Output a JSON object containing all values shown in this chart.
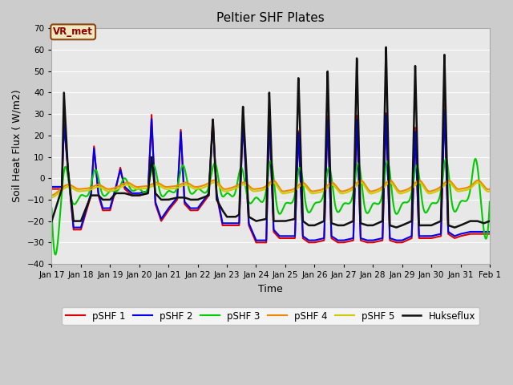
{
  "title": "Peltier SHF Plates",
  "xlabel": "Time",
  "ylabel": "Soil Heat Flux ( W/m2)",
  "ylim": [
    -40,
    70
  ],
  "yticks": [
    -40,
    -30,
    -20,
    -10,
    0,
    10,
    20,
    30,
    40,
    50,
    60,
    70
  ],
  "xlim": [
    0,
    15
  ],
  "xtick_labels": [
    "Jan 17",
    "Jan 18",
    "Jan 19",
    "Jan 20",
    "Jan 21",
    "Jan 22",
    "Jan 23",
    "Jan 24",
    "Jan 25",
    "Jan 26",
    "Jan 27",
    "Jan 28",
    "Jan 29",
    "Jan 30",
    "Jan 31",
    "Feb 1"
  ],
  "annotation_text": "VR_met",
  "series_colors": [
    "#dd0000",
    "#0000ee",
    "#00cc00",
    "#ee8800",
    "#cccc00",
    "#111111"
  ],
  "series_labels": [
    "pSHF 1",
    "pSHF 2",
    "pSHF 3",
    "pSHF 4",
    "pSHF 5",
    "Hukseflux"
  ],
  "series_linewidths": [
    1.5,
    1.5,
    1.5,
    1.5,
    1.5,
    1.8
  ],
  "huk_t": [
    0.0,
    0.35,
    0.42,
    0.55,
    0.75,
    1.0,
    1.35,
    1.45,
    1.6,
    1.75,
    2.0,
    2.2,
    2.35,
    2.5,
    2.75,
    3.0,
    3.3,
    3.42,
    3.55,
    3.75,
    4.0,
    4.3,
    4.42,
    4.55,
    4.75,
    5.0,
    5.38,
    5.52,
    5.65,
    5.85,
    6.0,
    6.3,
    6.42,
    6.55,
    6.75,
    7.0,
    7.35,
    7.45,
    7.6,
    7.8,
    8.0,
    8.33,
    8.45,
    8.6,
    8.8,
    9.0,
    9.33,
    9.45,
    9.58,
    9.8,
    10.0,
    10.33,
    10.45,
    10.58,
    10.8,
    11.0,
    11.33,
    11.45,
    11.58,
    11.8,
    12.0,
    12.33,
    12.45,
    12.58,
    12.8,
    13.0,
    13.33,
    13.45,
    13.58,
    13.8,
    14.0,
    14.33,
    14.45,
    14.58,
    14.8,
    15.0
  ],
  "huk_v": [
    -20,
    -5,
    40,
    5,
    -20,
    -20,
    -8,
    -8,
    -8,
    -10,
    -10,
    -7,
    -7,
    -7,
    -8,
    -8,
    -7,
    10,
    -7,
    -10,
    -10,
    -9,
    -9,
    -9,
    -10,
    -10,
    -8,
    28,
    -10,
    -15,
    -18,
    -18,
    -17,
    34,
    -18,
    -20,
    -19,
    41,
    -20,
    -20,
    -20,
    -19,
    48,
    -20,
    -22,
    -22,
    -20,
    51,
    -21,
    -22,
    -22,
    -20,
    57,
    -21,
    -22,
    -22,
    -20,
    62,
    -22,
    -23,
    -22,
    -20,
    53,
    -22,
    -22,
    -22,
    -20,
    58,
    -22,
    -23,
    -22,
    -20,
    -20,
    -20,
    -21,
    -20
  ],
  "shf1_t": [
    0.0,
    0.35,
    0.42,
    0.55,
    0.75,
    1.0,
    1.35,
    1.45,
    1.6,
    1.75,
    2.0,
    2.2,
    2.35,
    2.5,
    2.75,
    3.0,
    3.3,
    3.42,
    3.55,
    3.75,
    4.0,
    4.3,
    4.42,
    4.55,
    4.75,
    5.0,
    5.38,
    5.52,
    5.65,
    5.85,
    6.0,
    6.3,
    6.42,
    6.55,
    6.75,
    7.0,
    7.35,
    7.45,
    7.6,
    7.8,
    8.0,
    8.33,
    8.45,
    8.6,
    8.8,
    9.0,
    9.33,
    9.45,
    9.58,
    9.8,
    10.0,
    10.33,
    10.45,
    10.58,
    10.8,
    11.0,
    11.33,
    11.45,
    11.58,
    11.8,
    12.0,
    12.33,
    12.45,
    12.58,
    12.8,
    13.0,
    13.33,
    13.45,
    13.58,
    13.8,
    14.0,
    14.33,
    14.45,
    14.58,
    14.8,
    15.0
  ],
  "shf1_v": [
    -5,
    -5,
    27,
    5,
    -24,
    -24,
    -8,
    15,
    -8,
    -15,
    -15,
    -5,
    5,
    -5,
    -8,
    -8,
    -7,
    30,
    -12,
    -20,
    -15,
    -10,
    23,
    -12,
    -15,
    -15,
    -8,
    28,
    -8,
    -22,
    -22,
    -22,
    -22,
    28,
    -22,
    -30,
    -30,
    30,
    -25,
    -28,
    -28,
    -28,
    23,
    -28,
    -30,
    -30,
    -29,
    30,
    -28,
    -30,
    -30,
    -29,
    30,
    -29,
    -30,
    -30,
    -29,
    31,
    -29,
    -30,
    -30,
    -28,
    24,
    -28,
    -28,
    -28,
    -27,
    35,
    -26,
    -28,
    -27,
    -26,
    -26,
    -26,
    -26,
    -26
  ],
  "shf2_t": [
    0.0,
    0.35,
    0.42,
    0.55,
    0.75,
    1.0,
    1.35,
    1.45,
    1.6,
    1.75,
    2.0,
    2.2,
    2.35,
    2.5,
    2.75,
    3.0,
    3.3,
    3.42,
    3.55,
    3.75,
    4.0,
    4.3,
    4.42,
    4.55,
    4.75,
    5.0,
    5.38,
    5.52,
    5.65,
    5.85,
    6.0,
    6.3,
    6.42,
    6.55,
    6.75,
    7.0,
    7.35,
    7.45,
    7.6,
    7.8,
    8.0,
    8.33,
    8.45,
    8.6,
    8.8,
    9.0,
    9.33,
    9.45,
    9.58,
    9.8,
    10.0,
    10.33,
    10.45,
    10.58,
    10.8,
    11.0,
    11.33,
    11.45,
    11.58,
    11.8,
    12.0,
    12.33,
    12.45,
    12.58,
    12.8,
    13.0,
    13.33,
    13.45,
    13.58,
    13.8,
    14.0,
    14.33,
    14.45,
    14.58,
    14.8,
    15.0
  ],
  "shf2_v": [
    -4,
    -4,
    25,
    5,
    -23,
    -23,
    -7,
    14,
    -7,
    -14,
    -14,
    -4,
    4,
    -4,
    -7,
    -7,
    -6,
    28,
    -11,
    -19,
    -14,
    -9,
    22,
    -11,
    -14,
    -14,
    -7,
    26,
    -7,
    -21,
    -21,
    -21,
    -21,
    26,
    -21,
    -29,
    -29,
    28,
    -24,
    -27,
    -27,
    -27,
    22,
    -27,
    -29,
    -29,
    -28,
    28,
    -27,
    -29,
    -29,
    -28,
    28,
    -28,
    -29,
    -29,
    -28,
    30,
    -28,
    -29,
    -29,
    -27,
    22,
    -27,
    -27,
    -27,
    -26,
    32,
    -25,
    -27,
    -26,
    -25,
    -25,
    -25,
    -25,
    -25
  ],
  "shf3_t": [
    0.0,
    0.35,
    0.45,
    0.65,
    1.0,
    1.3,
    1.5,
    1.7,
    2.0,
    2.3,
    2.5,
    2.7,
    3.0,
    3.3,
    3.5,
    3.7,
    4.0,
    4.3,
    4.5,
    4.7,
    5.0,
    5.4,
    5.6,
    5.8,
    6.0,
    6.3,
    6.5,
    6.7,
    7.0,
    7.35,
    7.5,
    7.7,
    8.0,
    8.35,
    8.5,
    8.7,
    9.0,
    9.35,
    9.5,
    9.7,
    10.0,
    10.35,
    10.5,
    10.7,
    11.0,
    11.35,
    11.5,
    11.7,
    12.0,
    12.35,
    12.5,
    12.7,
    13.0,
    13.35,
    13.5,
    13.7,
    14.0,
    14.35,
    14.5,
    14.7,
    15.0
  ],
  "shf3_v": [
    -14,
    -6,
    5,
    -8,
    -8,
    -6,
    4,
    -6,
    -6,
    -5,
    0,
    -5,
    -5,
    -4,
    6,
    -6,
    -6,
    -4,
    6,
    -5,
    -5,
    -3,
    7,
    -7,
    -7,
    -6,
    5,
    -9,
    -9,
    -5,
    8,
    -12,
    -12,
    -6,
    5,
    -12,
    -12,
    -5,
    5,
    -12,
    -12,
    -5,
    7,
    -12,
    -12,
    -5,
    8,
    -12,
    -12,
    -5,
    6,
    -12,
    -12,
    -4,
    9,
    -11,
    -11,
    -4,
    9,
    -11,
    -11
  ],
  "shf4_t": [
    0.0,
    0.4,
    0.6,
    0.9,
    1.0,
    1.4,
    1.6,
    1.9,
    2.0,
    2.4,
    2.6,
    2.9,
    3.0,
    3.4,
    3.6,
    3.9,
    4.0,
    4.4,
    4.6,
    4.9,
    5.0,
    5.4,
    5.6,
    5.9,
    6.0,
    6.4,
    6.6,
    6.9,
    7.0,
    7.4,
    7.6,
    7.9,
    8.0,
    8.4,
    8.6,
    8.9,
    9.0,
    9.4,
    9.6,
    9.9,
    10.0,
    10.4,
    10.6,
    10.9,
    11.0,
    11.4,
    11.6,
    11.9,
    12.0,
    12.4,
    12.6,
    12.9,
    13.0,
    13.4,
    13.6,
    13.9,
    14.0,
    14.4,
    14.6,
    14.9,
    15.0
  ],
  "shf4_v": [
    -8,
    -4,
    -3,
    -5,
    -5,
    -4,
    -3,
    -5,
    -5,
    -3,
    -2,
    -4,
    -4,
    -3,
    -2,
    -4,
    -4,
    -3,
    -2,
    -4,
    -4,
    -2,
    -1,
    -5,
    -5,
    -3,
    -2,
    -5,
    -5,
    -3,
    -1,
    -6,
    -6,
    -4,
    -2,
    -6,
    -6,
    -4,
    -2,
    -6,
    -6,
    -3,
    -1,
    -6,
    -6,
    -3,
    -1,
    -6,
    -6,
    -3,
    -1,
    -6,
    -6,
    -3,
    -1,
    -5,
    -5,
    -3,
    -1,
    -5,
    -5
  ],
  "shf5_t": [
    0.0,
    0.4,
    0.6,
    0.9,
    1.0,
    1.4,
    1.6,
    1.9,
    2.0,
    2.4,
    2.6,
    2.9,
    3.0,
    3.4,
    3.6,
    3.9,
    4.0,
    4.4,
    4.6,
    4.9,
    5.0,
    5.4,
    5.6,
    5.9,
    6.0,
    6.4,
    6.6,
    6.9,
    7.0,
    7.4,
    7.6,
    7.9,
    8.0,
    8.4,
    8.6,
    8.9,
    9.0,
    9.4,
    9.6,
    9.9,
    10.0,
    10.4,
    10.6,
    10.9,
    11.0,
    11.4,
    11.6,
    11.9,
    12.0,
    12.4,
    12.6,
    12.9,
    13.0,
    13.4,
    13.6,
    13.9,
    14.0,
    14.4,
    14.6,
    14.9,
    15.0
  ],
  "shf5_v": [
    -9,
    -5,
    -4,
    -6,
    -6,
    -5,
    -4,
    -6,
    -6,
    -4,
    -3,
    -5,
    -5,
    -4,
    -3,
    -5,
    -5,
    -4,
    -3,
    -5,
    -5,
    -3,
    -2,
    -6,
    -6,
    -4,
    -3,
    -6,
    -6,
    -4,
    -2,
    -7,
    -7,
    -5,
    -3,
    -7,
    -7,
    -5,
    -3,
    -7,
    -7,
    -4,
    -2,
    -7,
    -7,
    -4,
    -2,
    -7,
    -7,
    -4,
    -2,
    -7,
    -7,
    -4,
    -2,
    -6,
    -6,
    -4,
    -2,
    -6,
    -6
  ]
}
